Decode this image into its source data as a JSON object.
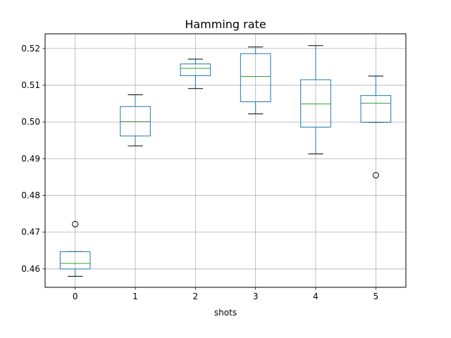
{
  "chart_data": {
    "type": "box",
    "title": "Hamming rate",
    "xlabel": "shots",
    "ylabel": "",
    "categories": [
      "0",
      "1",
      "2",
      "3",
      "4",
      "5"
    ],
    "ylim": [
      0.455,
      0.524
    ],
    "yticks": [
      0.46,
      0.47,
      0.48,
      0.49,
      0.5,
      0.51,
      0.52
    ],
    "ytick_labels": [
      "0.46",
      "0.47",
      "0.48",
      "0.49",
      "0.50",
      "0.51",
      "0.52"
    ],
    "grid": true,
    "boxes": [
      {
        "label": "0",
        "whisker_low": 0.458,
        "q1": 0.46,
        "median": 0.4615,
        "q3": 0.4647,
        "whisker_high": 0.4647,
        "outliers": [
          0.4722
        ]
      },
      {
        "label": "1",
        "whisker_low": 0.4935,
        "q1": 0.4962,
        "median": 0.5001,
        "q3": 0.5042,
        "whisker_high": 0.5074,
        "outliers": []
      },
      {
        "label": "2",
        "whisker_low": 0.5091,
        "q1": 0.5126,
        "median": 0.5146,
        "q3": 0.5158,
        "whisker_high": 0.5171,
        "outliers": []
      },
      {
        "label": "3",
        "whisker_low": 0.5022,
        "q1": 0.5055,
        "median": 0.5124,
        "q3": 0.5186,
        "whisker_high": 0.5204,
        "outliers": []
      },
      {
        "label": "4",
        "whisker_low": 0.4913,
        "q1": 0.4986,
        "median": 0.5049,
        "q3": 0.5115,
        "whisker_high": 0.5208,
        "outliers": []
      },
      {
        "label": "5",
        "whisker_low": 0.4999,
        "q1": 0.4999,
        "median": 0.5051,
        "q3": 0.5072,
        "whisker_high": 0.5125,
        "outliers": [
          0.4855
        ]
      }
    ],
    "colors": {
      "box": "#1f77b4",
      "median": "#2ca02c",
      "whisker": "#1f77b4",
      "cap": "#000000",
      "grid": "#b0b0b0",
      "outlier": "#000000"
    }
  }
}
